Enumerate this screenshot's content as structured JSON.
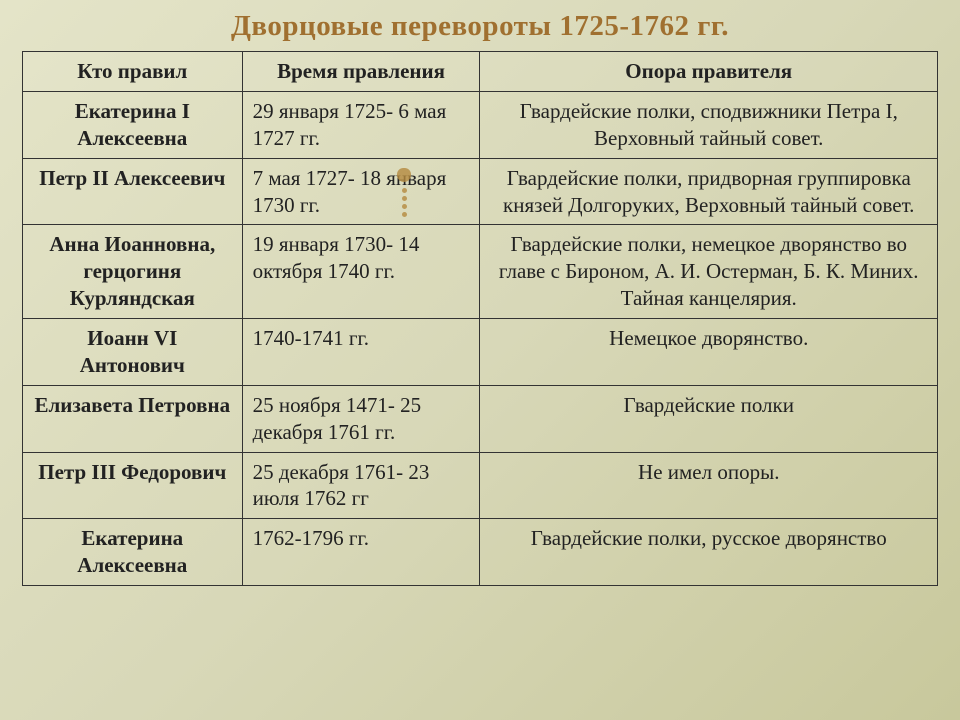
{
  "title": "Дворцовые перевороты 1725-1762 гг.",
  "table": {
    "headers": {
      "ruler": "Кто правил",
      "period": "Время правления",
      "support": "Опора правителя"
    },
    "col_widths_pct": [
      24,
      26,
      50
    ],
    "header_fontsize_pt": 16,
    "cell_fontsize_pt": 16,
    "border_color": "#333333",
    "rows": [
      {
        "ruler": "Екатерина I Алексеевна",
        "period": "29 января 1725- 6 мая 1727 гг.",
        "support": "Гвардейские полки, сподвижники Петра I,  Верховный тайный совет."
      },
      {
        "ruler": "Петр II Алексеевич",
        "period": "7 мая 1727- 18 января 1730 гг.",
        "support": "Гвардейские полки, придворная группировка князей Долгоруких, Верховный тайный совет."
      },
      {
        "ruler": "Анна Иоанновна, герцогиня Курляндская",
        "period": "19 января 1730- 14 октября 1740 гг.",
        "support": "Гвардейские полки, немецкое дворянство во главе с Бироном, А. И. Остерман, Б. К. Миних. Тайная канцелярия."
      },
      {
        "ruler": "Иоанн VI Антонович",
        "period": "1740-1741 гг.",
        "support": "Немецкое дворянство."
      },
      {
        "ruler": "Елизавета Петровна",
        "period": "25 ноября 1471- 25 декабря 1761 гг.",
        "support": "Гвардейские полки"
      },
      {
        "ruler": "Петр III Федорович",
        "period": "25 декабря 1761- 23 июля 1762 гг",
        "support": "Не имел опоры."
      },
      {
        "ruler": "Екатерина Алексеевна",
        "period": "1762-1796 гг.",
        "support": "Гвардейские полки, русское дворянство"
      }
    ]
  },
  "style": {
    "title_color": "#a07030",
    "title_fontsize_pt": 22,
    "background_gradient": [
      "#e4e4c8",
      "#d8d8b8",
      "#c8c89c"
    ],
    "accent_color": "#b58a3f",
    "font_family": "Times New Roman"
  }
}
